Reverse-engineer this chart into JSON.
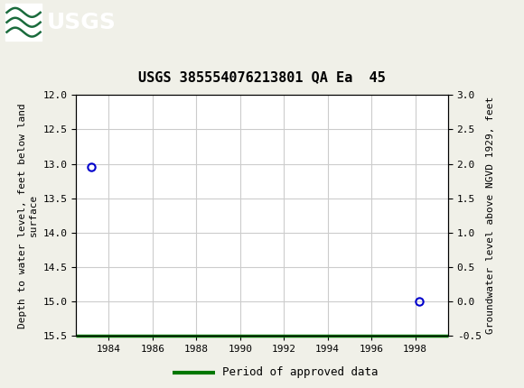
{
  "title": "USGS 385554076213801 QA Ea  45",
  "ylabel_left": "Depth to water level, feet below land\nsurface",
  "ylabel_right": "Groundwater level above NGVD 1929, feet",
  "ylim_left": [
    15.5,
    12.0
  ],
  "ylim_right": [
    -0.5,
    3.0
  ],
  "xlim": [
    1982.5,
    1999.5
  ],
  "xticks": [
    1984,
    1986,
    1988,
    1990,
    1992,
    1994,
    1996,
    1998
  ],
  "yticks_left": [
    12.0,
    12.5,
    13.0,
    13.5,
    14.0,
    14.5,
    15.0,
    15.5
  ],
  "yticks_right": [
    3.0,
    2.5,
    2.0,
    1.5,
    1.0,
    0.5,
    0.0,
    -0.5
  ],
  "data_points_x": [
    1983.2,
    1998.2
  ],
  "data_points_y": [
    13.05,
    15.0
  ],
  "data_point_color": "#0000cc",
  "green_line_x_start": 1982.5,
  "green_line_x_end": 1999.5,
  "green_line_y": 15.5,
  "green_color": "#007700",
  "header_color": "#1a6b3c",
  "header_text_color": "#ffffff",
  "background_color": "#f0f0e8",
  "plot_bg_color": "#ffffff",
  "grid_color": "#cccccc",
  "font_family": "monospace",
  "title_fontsize": 11,
  "axis_label_fontsize": 8,
  "tick_fontsize": 8,
  "legend_fontsize": 9,
  "legend_label": "Period of approved data"
}
